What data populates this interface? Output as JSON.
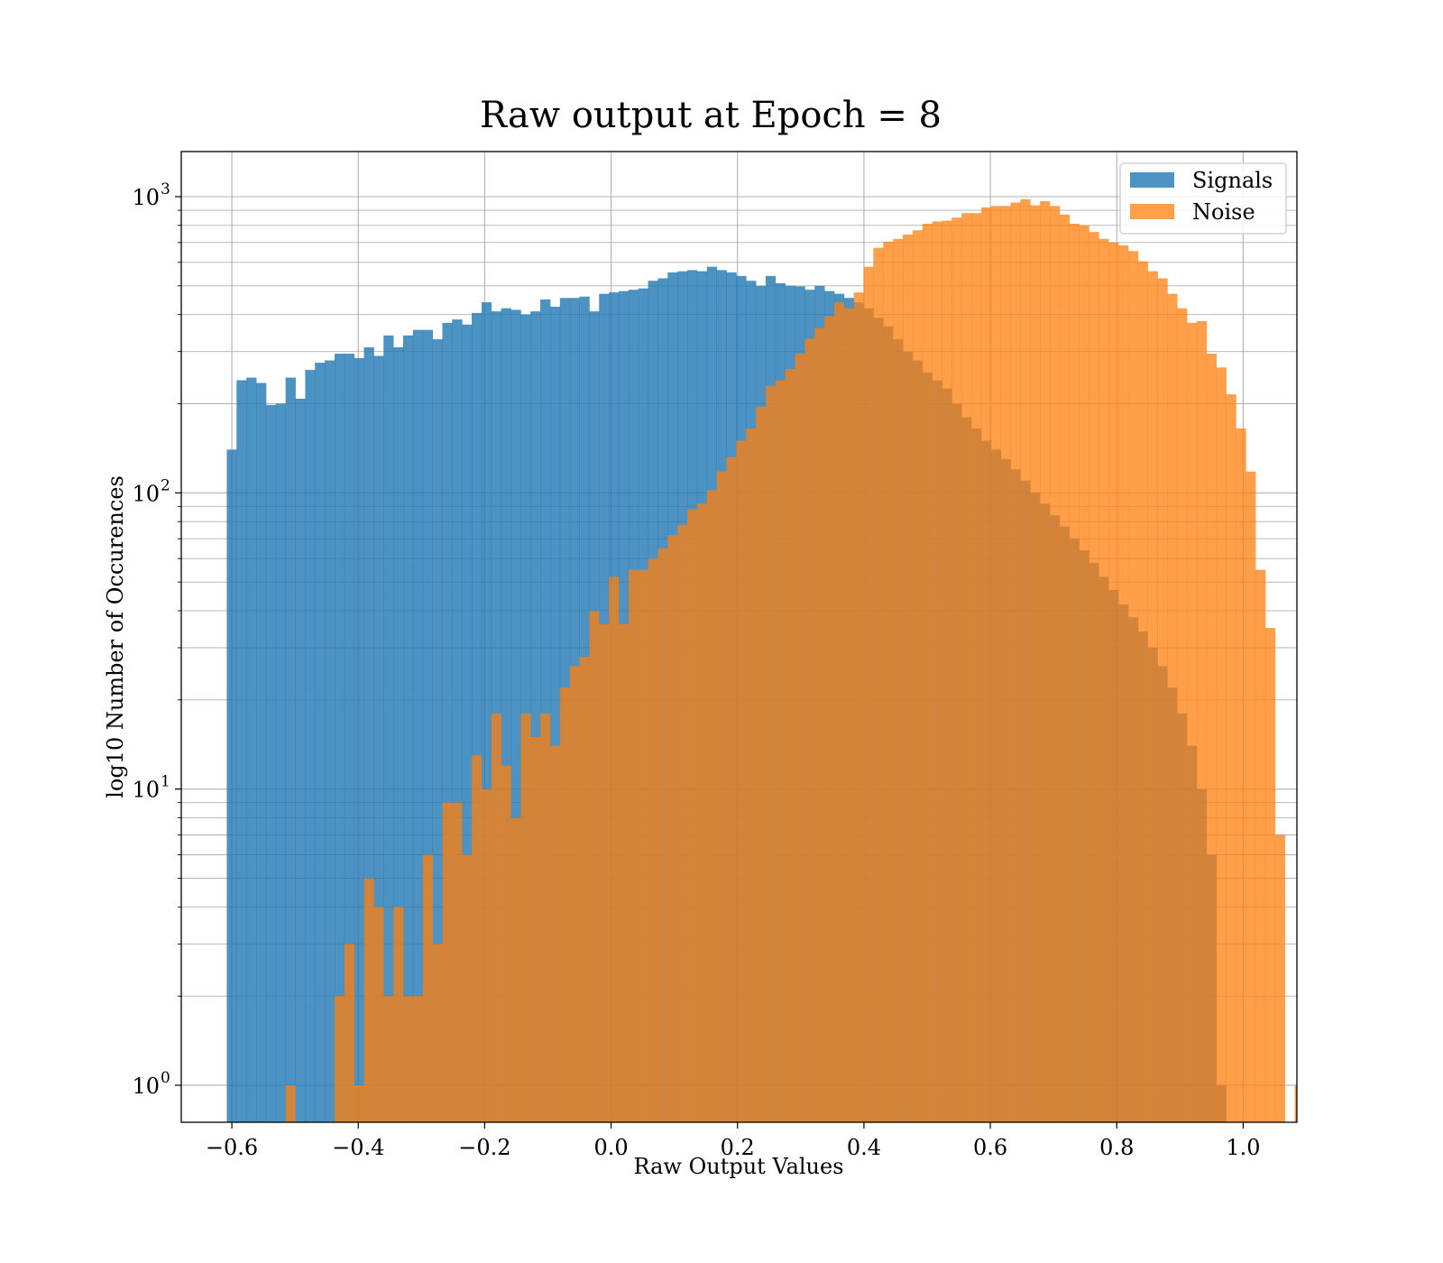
{
  "chart_data": {
    "type": "bar",
    "title": "Raw output at Epoch = 8",
    "xlabel": "Raw Output Values",
    "ylabel": "log10 Number of Occurences",
    "xlim": [
      -0.68,
      1.085
    ],
    "ylim": [
      0.75,
      1420
    ],
    "yscale": "log",
    "grid": true,
    "legend": "top-right",
    "xticks": [
      {
        "value": -0.6,
        "label": "−0.6"
      },
      {
        "value": -0.4,
        "label": "−0.4"
      },
      {
        "value": -0.2,
        "label": "−0.2"
      },
      {
        "value": 0.0,
        "label": "0.0"
      },
      {
        "value": 0.2,
        "label": "0.2"
      },
      {
        "value": 0.4,
        "label": "0.4"
      },
      {
        "value": 0.6,
        "label": "0.6"
      },
      {
        "value": 0.8,
        "label": "0.8"
      },
      {
        "value": 1.0,
        "label": "1.0"
      }
    ],
    "yticks": [
      {
        "value": 1,
        "base": "10",
        "exp": "0"
      },
      {
        "value": 10,
        "base": "10",
        "exp": "1"
      },
      {
        "value": 100,
        "base": "10",
        "exp": "2"
      },
      {
        "value": 1000,
        "base": "10",
        "exp": "3"
      }
    ],
    "series": [
      {
        "name": "Signals",
        "color": "#1f77b4",
        "opacity": 0.8,
        "bin_start": -0.608,
        "bin_width": 0.0155,
        "values": [
          140,
          240,
          245,
          235,
          198,
          200,
          245,
          208,
          260,
          275,
          280,
          295,
          295,
          285,
          310,
          290,
          340,
          310,
          340,
          355,
          355,
          330,
          375,
          385,
          370,
          405,
          440,
          410,
          420,
          415,
          400,
          410,
          450,
          425,
          455,
          455,
          460,
          410,
          470,
          475,
          480,
          485,
          490,
          520,
          530,
          555,
          560,
          565,
          560,
          580,
          565,
          555,
          540,
          520,
          500,
          540,
          510,
          500,
          498,
          485,
          500,
          480,
          470,
          455,
          440,
          420,
          390,
          365,
          330,
          300,
          280,
          255,
          240,
          225,
          200,
          180,
          165,
          150,
          140,
          130,
          120,
          110,
          100,
          92,
          84,
          77,
          70,
          64,
          58,
          52,
          47,
          42,
          38,
          34,
          30,
          26,
          22,
          18,
          14,
          10,
          6,
          1
        ]
      },
      {
        "name": "Noise",
        "color": "#ff7f0e",
        "opacity": 0.75,
        "bin_start": -0.608,
        "bin_width": 0.0155,
        "values": [
          0,
          0,
          0,
          0,
          0,
          0,
          1,
          0,
          0,
          0,
          0,
          2,
          3,
          1,
          5,
          4,
          2,
          4,
          2,
          2,
          6,
          3,
          9,
          9,
          6,
          13,
          10,
          18,
          12,
          8,
          18,
          15,
          18,
          14,
          22,
          26,
          28,
          40,
          36,
          52,
          36,
          55,
          55,
          60,
          65,
          72,
          78,
          88,
          92,
          102,
          118,
          132,
          150,
          165,
          195,
          230,
          240,
          262,
          295,
          332,
          360,
          395,
          440,
          420,
          475,
          580,
          672,
          705,
          720,
          745,
          770,
          810,
          825,
          830,
          850,
          880,
          880,
          920,
          930,
          930,
          955,
          980,
          935,
          965,
          930,
          870,
          810,
          800,
          760,
          720,
          700,
          685,
          655,
          605,
          560,
          530,
          470,
          420,
          375,
          380,
          295,
          265,
          215,
          165,
          118,
          55,
          35,
          7,
          0,
          1
        ]
      }
    ]
  }
}
